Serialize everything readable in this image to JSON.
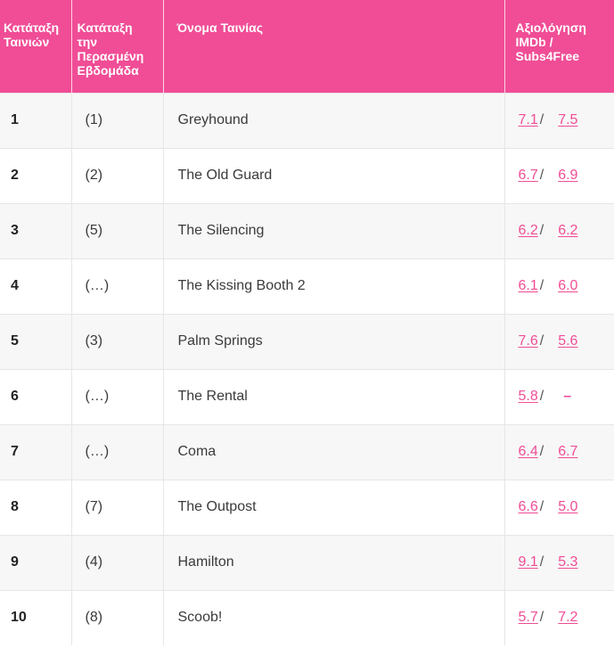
{
  "headers": {
    "rank": "Κατάταξη\nΤαινιών",
    "prev": "Κατάταξη\nτην\nΠερασμένη\nΕβδομάδα",
    "name": "Όνομα Ταινίας",
    "rating": "Αξιολόγηση\nIMDb /\nSubs4Free"
  },
  "rows": [
    {
      "rank": "1",
      "prev": "(1)",
      "name": "Greyhound",
      "imdb": "7.1",
      "subs": "7.5"
    },
    {
      "rank": "2",
      "prev": "(2)",
      "name": "The Old Guard",
      "imdb": "6.7",
      "subs": "6.9"
    },
    {
      "rank": "3",
      "prev": "(5)",
      "name": "The Silencing",
      "imdb": "6.2",
      "subs": "6.2"
    },
    {
      "rank": "4",
      "prev": "(…)",
      "name": "The Kissing Booth 2",
      "imdb": "6.1",
      "subs": "6.0"
    },
    {
      "rank": "5",
      "prev": "(3)",
      "name": "Palm Springs",
      "imdb": "7.6",
      "subs": "5.6"
    },
    {
      "rank": "6",
      "prev": "(…)",
      "name": "The Rental",
      "imdb": "5.8",
      "subs": "–"
    },
    {
      "rank": "7",
      "prev": "(…)",
      "name": "Coma",
      "imdb": "6.4",
      "subs": "6.7"
    },
    {
      "rank": "8",
      "prev": "(7)",
      "name": "The Outpost",
      "imdb": "6.6",
      "subs": "5.0"
    },
    {
      "rank": "9",
      "prev": "(4)",
      "name": "Hamilton",
      "imdb": "9.1",
      "subs": "5.3"
    },
    {
      "rank": "10",
      "prev": "(8)",
      "name": "Scoob!",
      "imdb": "5.7",
      "subs": "7.2"
    }
  ],
  "separator": "/",
  "colors": {
    "header_bg": "#f04d96",
    "link": "#f04d96",
    "row_alt": "#f7f7f7"
  }
}
